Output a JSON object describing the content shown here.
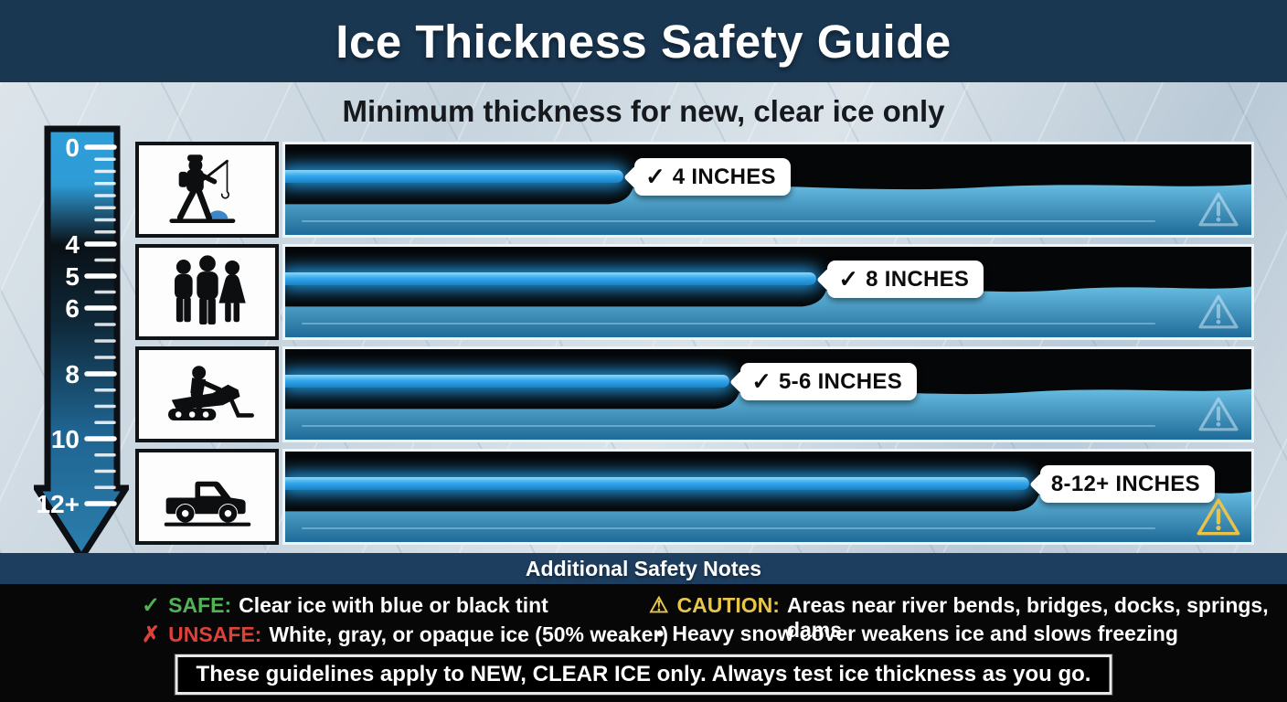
{
  "header": {
    "title": "Ice Thickness Safety Guide"
  },
  "subtitle": "Minimum thickness for new, clear ice only",
  "ruler": {
    "unit_marks": [
      "0",
      "4",
      "5",
      "6",
      "8",
      "10",
      "12+"
    ]
  },
  "colors": {
    "header_navy": "#1a3752",
    "bar_blue": "#2da0e8",
    "water_blue": "#3d94c4",
    "safe_green": "#52b356",
    "unsafe_red": "#dd4138",
    "caution_yellow": "#e8c64a"
  },
  "chart_data": {
    "type": "bar",
    "title": "Ice Thickness Safety Guide",
    "subtitle": "Minimum thickness for new, clear ice only",
    "unit": "inches",
    "axis_marks": [
      "0",
      "4",
      "5",
      "6",
      "8",
      "10",
      "12+"
    ],
    "rows": [
      {
        "activity": "person-ice-fishing",
        "label": "4 INCHES",
        "check": "✓",
        "min_inches": 4,
        "bar_pct": 35,
        "warn": "normal"
      },
      {
        "activity": "group-of-people",
        "label": "8 INCHES",
        "check": "✓",
        "min_inches": 8,
        "bar_pct": 55,
        "warn": "normal"
      },
      {
        "activity": "snowmobile",
        "label": "5-6 INCHES",
        "check": "✓",
        "min_inches": 5.5,
        "bar_pct": 46,
        "warn": "normal"
      },
      {
        "activity": "pickup-truck",
        "label": "8-12+ INCHES",
        "check": "",
        "min_inches": 12,
        "bar_pct": 77,
        "warn": "caution"
      }
    ]
  },
  "safety_notes": {
    "title": "Additional Safety Notes",
    "safe": {
      "icon": "✓",
      "keyword": "SAFE:",
      "text": "Clear ice with blue or black tint"
    },
    "unsafe": {
      "icon": "✗",
      "keyword": "UNSAFE:",
      "text": "White, gray, or opaque ice (50% weaker)"
    },
    "caution": {
      "icon": "⚠",
      "keyword": "CAUTION:",
      "text": "Areas near river bends, bridges, docks, springs, dams"
    },
    "snow": {
      "icon": "•",
      "keyword": "",
      "text": "Heavy snow cover weakens ice and slows freezing"
    },
    "footer": "These guidelines apply to NEW, CLEAR ICE only. Always test ice thickness as you go."
  }
}
